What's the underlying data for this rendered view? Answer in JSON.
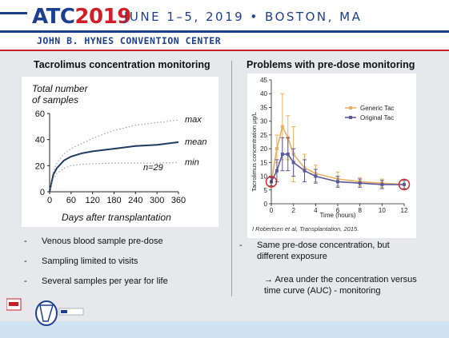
{
  "header": {
    "logo_atc": "ATC",
    "logo_year": "2019",
    "dates": "JUNE 1–5, 2019 • BOSTON, MA",
    "venue": "JOHN B. HYNES CONVENTION CENTER",
    "accent_blue": "#1d3f8f",
    "accent_red": "#d11f28"
  },
  "left": {
    "title": "Tacrolimus concentration monitoring",
    "bullets": [
      "Venous blood sample pre-dose",
      "Sampling limited to visits",
      "Several samples per year for life"
    ]
  },
  "right": {
    "title": "Problems with pre-dose monitoring",
    "citation": "I Robertsen et al, Transplantation, 2015.",
    "bullets": [
      "Same pre-dose concentration, but different exposure"
    ],
    "sub_bullet": "→ Area under the concentration versus time curve (AUC) - monitoring"
  },
  "chart_data": [
    {
      "type": "line",
      "ylabel": "Total number of samples",
      "xlabel": "Days after transplantation",
      "xlim": [
        0,
        360
      ],
      "ylim": [
        0,
        60
      ],
      "xticks": [
        0,
        60,
        120,
        180,
        240,
        300,
        360
      ],
      "yticks": [
        0,
        20,
        40,
        60
      ],
      "annotation": "n=29",
      "series": [
        {
          "name": "max",
          "style": "dotted",
          "x": [
            0,
            10,
            20,
            40,
            60,
            90,
            120,
            180,
            240,
            300,
            360
          ],
          "y": [
            0,
            15,
            22,
            29,
            33,
            37,
            41,
            47,
            51,
            53,
            55
          ]
        },
        {
          "name": "mean",
          "style": "solid",
          "x": [
            0,
            10,
            20,
            40,
            60,
            90,
            120,
            180,
            240,
            300,
            360
          ],
          "y": [
            0,
            13,
            18,
            24,
            27,
            29.5,
            31,
            33,
            35,
            36,
            38
          ]
        },
        {
          "name": "min",
          "style": "dotted",
          "x": [
            0,
            10,
            20,
            40,
            60,
            90,
            120,
            180,
            240,
            300,
            360
          ],
          "y": [
            0,
            10,
            14,
            18,
            20,
            21,
            21.5,
            22,
            22,
            22,
            22.5
          ]
        }
      ],
      "colors": {
        "mean": "#1f3a60",
        "range": "#9aa0a8"
      }
    },
    {
      "type": "line",
      "ylabel": "Tacrolimus concentration µg/L",
      "xlabel": "Time (hours)",
      "xlim": [
        0,
        12
      ],
      "ylim": [
        0,
        45
      ],
      "xticks": [
        0,
        2,
        4,
        6,
        8,
        10,
        12
      ],
      "yticks": [
        0,
        5,
        10,
        15,
        20,
        25,
        30,
        35,
        40,
        45
      ],
      "legend": "top-right",
      "series": [
        {
          "name": "Generic Tac",
          "color": "#e8b060",
          "x": [
            0,
            0.5,
            1,
            1.5,
            2,
            3,
            4,
            6,
            8,
            10,
            12
          ],
          "y": [
            8,
            20,
            28,
            24,
            18,
            13,
            11,
            9,
            8,
            7.5,
            7
          ],
          "err": [
            1.5,
            5,
            12,
            8,
            10,
            5,
            3,
            2.5,
            1.5,
            1.5,
            1.5
          ]
        },
        {
          "name": "Original Tac",
          "color": "#5a5a9a",
          "x": [
            0,
            0.5,
            1,
            1.5,
            2,
            3,
            4,
            6,
            8,
            10,
            12
          ],
          "y": [
            8,
            12,
            18,
            18,
            15,
            12,
            10,
            8,
            7.5,
            7,
            7
          ],
          "err": [
            1.5,
            4,
            6,
            6,
            5,
            4,
            2.5,
            2,
            1.5,
            1.5,
            1.5
          ]
        }
      ],
      "highlight_color": "#d42a2a"
    }
  ]
}
